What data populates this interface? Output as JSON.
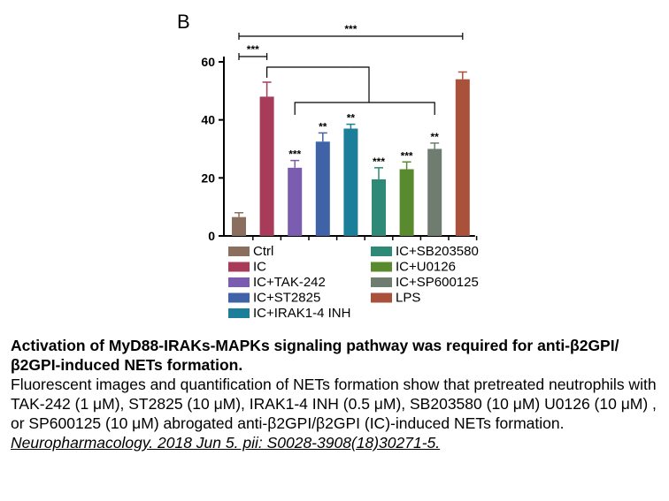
{
  "chart_data": {
    "type": "bar",
    "panel_label": "B",
    "categories": [
      "Ctrl",
      "IC",
      "IC+TAK-242",
      "IC+ST2825",
      "IC+IRAK1-4 INH",
      "IC+SB203580",
      "IC+U0126",
      "IC+SP600125",
      "LPS"
    ],
    "values": [
      6.5,
      48,
      23.5,
      32.5,
      37,
      19.5,
      23,
      30,
      54
    ],
    "errors": [
      1.5,
      5,
      2.5,
      3,
      1.5,
      4,
      2.5,
      2,
      2.5
    ],
    "colors": [
      "#8a6f5f",
      "#a83a5a",
      "#7a5cb0",
      "#3f63a6",
      "#1b7f9a",
      "#2e8a76",
      "#5a8a2e",
      "#6f7d70",
      "#a9513a"
    ],
    "significance": [
      "",
      "",
      "***",
      "**",
      "**",
      "***",
      "***",
      "**",
      ""
    ],
    "brackets": [
      {
        "label": "***",
        "from": 0,
        "to": 8
      },
      {
        "label": "***",
        "from": 0,
        "to": 1
      }
    ],
    "yticks": [
      0,
      20,
      40,
      60
    ],
    "ylim": [
      0,
      60
    ],
    "xlabel": "",
    "ylabel": "",
    "legend": {
      "left": [
        {
          "label": "Ctrl",
          "color": "#8a6f5f"
        },
        {
          "label": "IC",
          "color": "#a83a5a"
        },
        {
          "label": "IC+TAK-242",
          "color": "#7a5cb0"
        },
        {
          "label": "IC+ST2825",
          "color": "#3f63a6"
        },
        {
          "label": "IC+IRAK1-4 INH",
          "color": "#1b7f9a"
        }
      ],
      "right": [
        {
          "label": "IC+SB203580",
          "color": "#2e8a76"
        },
        {
          "label": "IC+U0126",
          "color": "#5a8a2e"
        },
        {
          "label": "IC+SP600125",
          "color": "#6f7d70"
        },
        {
          "label": "LPS",
          "color": "#a9513a"
        }
      ]
    }
  },
  "caption": {
    "title": "Activation of MyD88-IRAKs-MAPKs signaling pathway was required for anti-β2GPI/β2GPI-induced NETs formation.",
    "body": "Fluorescent images and quantification of NETs formation show that pretreated neutrophils with TAK-242 (1 μM), ST2825 (10 μM), IRAK1-4 INH (0.5 μM), SB203580 (10 μM)  U0126 (10 μM) , or SP600125 (10 μM) abrogated anti-β2GPI/β2GPI (IC)-induced NETs formation. ",
    "citation": "Neuropharmacology. 2018 Jun 5. pii: S0028-3908(18)30271-5."
  }
}
